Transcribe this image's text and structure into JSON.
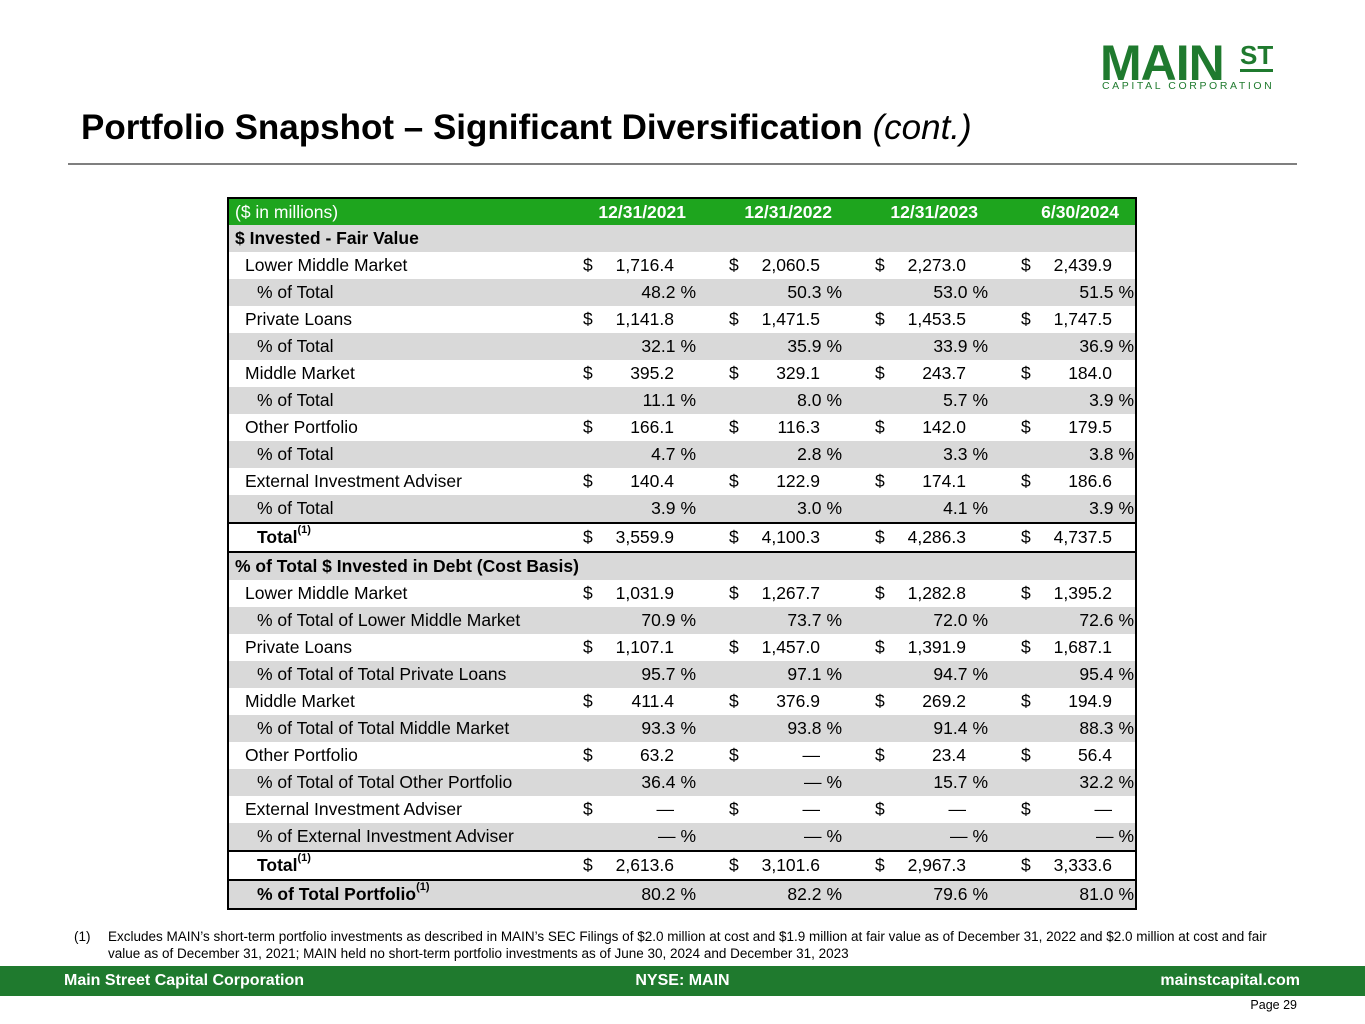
{
  "logo": {
    "main": "MAIN",
    "st": "ST",
    "sub": "CAPITAL CORPORATION"
  },
  "title": {
    "main": "Portfolio Snapshot – Significant Diversification",
    "cont": "(cont.)"
  },
  "table": {
    "units_label": "($ in millions)",
    "columns": [
      "12/31/2021",
      "12/31/2022",
      "12/31/2023",
      "6/30/2024"
    ],
    "rows": [
      {
        "type": "section",
        "label": "$ Invested - Fair Value"
      },
      {
        "type": "sub",
        "label": "Lower Middle Market",
        "values": [
          "1,716.4",
          "2,060.5",
          "2,273.0",
          "2,439.9"
        ]
      },
      {
        "type": "pct",
        "label": "% of Total",
        "values": [
          "48.2",
          "50.3",
          "53.0",
          "51.5"
        ]
      },
      {
        "type": "sub",
        "label": "Private Loans",
        "values": [
          "1,141.8",
          "1,471.5",
          "1,453.5",
          "1,747.5"
        ]
      },
      {
        "type": "pct",
        "label": "% of Total",
        "values": [
          "32.1",
          "35.9",
          "33.9",
          "36.9"
        ]
      },
      {
        "type": "sub",
        "label": "Middle Market",
        "values": [
          "395.2",
          "329.1",
          "243.7",
          "184.0"
        ]
      },
      {
        "type": "pct",
        "label": "% of Total",
        "values": [
          "11.1",
          "8.0",
          "5.7",
          "3.9"
        ]
      },
      {
        "type": "sub",
        "label": "Other Portfolio",
        "values": [
          "166.1",
          "116.3",
          "142.0",
          "179.5"
        ]
      },
      {
        "type": "pct",
        "label": "% of Total",
        "values": [
          "4.7",
          "2.8",
          "3.3",
          "3.8"
        ]
      },
      {
        "type": "sub",
        "label": "External Investment Adviser",
        "values": [
          "140.4",
          "122.9",
          "174.1",
          "186.6"
        ]
      },
      {
        "type": "pct",
        "label": "% of Total",
        "values": [
          "3.9",
          "3.0",
          "4.1",
          "3.9"
        ]
      },
      {
        "type": "total",
        "label": "Total",
        "sup": "(1)",
        "values": [
          "3,559.9",
          "4,100.3",
          "4,286.3",
          "4,737.5"
        ]
      },
      {
        "type": "section",
        "label": "% of Total $ Invested in Debt (Cost Basis)"
      },
      {
        "type": "sub",
        "label": "Lower Middle Market",
        "values": [
          "1,031.9",
          "1,267.7",
          "1,282.8",
          "1,395.2"
        ]
      },
      {
        "type": "pct",
        "label": "% of Total of Lower Middle Market",
        "values": [
          "70.9",
          "73.7",
          "72.0",
          "72.6"
        ]
      },
      {
        "type": "sub",
        "label": "Private Loans",
        "values": [
          "1,107.1",
          "1,457.0",
          "1,391.9",
          "1,687.1"
        ]
      },
      {
        "type": "pct",
        "label": "% of Total of Total Private Loans",
        "values": [
          "95.7",
          "97.1",
          "94.7",
          "95.4"
        ]
      },
      {
        "type": "sub",
        "label": "Middle Market",
        "values": [
          "411.4",
          "376.9",
          "269.2",
          "194.9"
        ]
      },
      {
        "type": "pct",
        "label": "% of Total of Total Middle Market",
        "values": [
          "93.3",
          "93.8",
          "91.4",
          "88.3"
        ]
      },
      {
        "type": "sub",
        "label": "Other Portfolio",
        "values": [
          "63.2",
          "—",
          "23.4",
          "56.4"
        ]
      },
      {
        "type": "pct",
        "label": "% of Total of Total Other Portfolio",
        "values": [
          "36.4",
          "—",
          "15.7",
          "32.2"
        ]
      },
      {
        "type": "sub",
        "label": "External Investment Adviser",
        "values": [
          "—",
          "—",
          "—",
          "—"
        ]
      },
      {
        "type": "pct",
        "label": "% of External Investment Adviser",
        "values": [
          "—",
          "—",
          "—",
          "—"
        ]
      },
      {
        "type": "total",
        "label": "Total",
        "sup": "(1)",
        "values": [
          "2,613.6",
          "3,101.6",
          "2,967.3",
          "3,333.6"
        ]
      },
      {
        "type": "portfolio-total",
        "label": "% of Total Portfolio",
        "sup": "(1)",
        "values": [
          "80.2",
          "82.2",
          "79.6",
          "81.0"
        ]
      }
    ]
  },
  "footnote": {
    "num": "(1)",
    "text": "Excludes MAIN’s short-term portfolio investments as described in MAIN’s SEC Filings of $2.0 million at cost and $1.9 million at fair value as of December 31, 2022 and $2.0 million at cost and fair value as of December 31, 2021; MAIN held no short-term portfolio investments as of June 30, 2024 and December 31, 2023"
  },
  "footer": {
    "left": "Main Street Capital Corporation",
    "mid": "NYSE: MAIN",
    "right": "mainstcapital.com"
  },
  "page": "Page  29",
  "symbols": {
    "dollar": "$",
    "percent": "%"
  },
  "colors": {
    "brand_green": "#1f7a2e",
    "header_green": "#1ea51e",
    "row_shade": "#d9d9d9"
  }
}
